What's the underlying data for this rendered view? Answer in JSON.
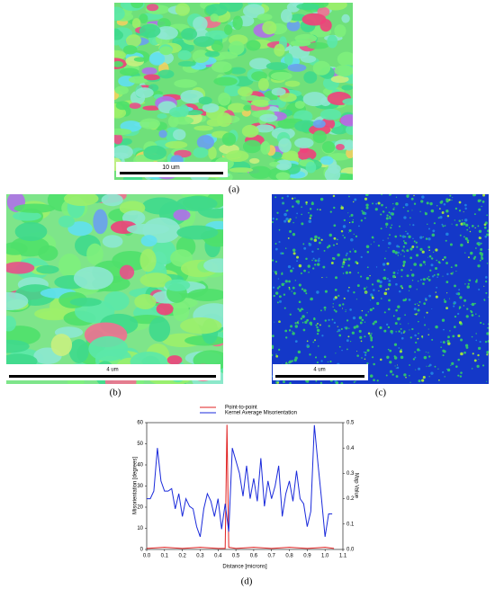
{
  "panels": [
    {
      "caption": "(a)",
      "scale_label": "10 um"
    },
    {
      "caption": "(b)",
      "scale_label": "4 um"
    },
    {
      "caption": "(c)",
      "scale_label": "4 um"
    }
  ],
  "chart_data": {
    "type": "line",
    "caption": "(d)",
    "xlabel": "Distance [microns]",
    "ylabel": "Misorientation [degrees]",
    "y2label": "Map Value",
    "xlim": [
      0,
      1.1
    ],
    "xticks": [
      {
        "value": 0,
        "label": "0.0"
      },
      0.1,
      0.2,
      0.3,
      0.4,
      0.5,
      0.6,
      0.7,
      0.8,
      0.9,
      {
        "value": 1,
        "label": "1.0"
      },
      1.1
    ],
    "ylim": [
      0,
      60
    ],
    "yticks": [
      0,
      10,
      20,
      30,
      40,
      50,
      60
    ],
    "y2lim": [
      0,
      0.5
    ],
    "y2ticks": [
      {
        "value": 0,
        "label": "0.0"
      },
      0.1,
      0.2,
      0.3,
      0.4,
      0.5
    ],
    "series": [
      {
        "name": "Point-to-point",
        "color": "#e02020",
        "x": [
          0,
          0.1,
          0.2,
          0.3,
          0.4,
          0.44,
          0.45,
          0.46,
          0.5,
          0.6,
          0.7,
          0.8,
          0.9,
          1.0,
          1.05
        ],
        "values": [
          0.5,
          1,
          0.5,
          1,
          0.5,
          0.5,
          59,
          1,
          0.5,
          1,
          0.5,
          1,
          0.5,
          1,
          0.5
        ]
      },
      {
        "name": "Kernel Average Misorientation",
        "color": "#1a2adb",
        "axis": "y2",
        "x": [
          0,
          0.02,
          0.04,
          0.06,
          0.08,
          0.1,
          0.12,
          0.14,
          0.16,
          0.18,
          0.2,
          0.22,
          0.24,
          0.26,
          0.28,
          0.3,
          0.32,
          0.34,
          0.36,
          0.38,
          0.4,
          0.42,
          0.44,
          0.46,
          0.48,
          0.5,
          0.52,
          0.54,
          0.56,
          0.58,
          0.6,
          0.62,
          0.64,
          0.66,
          0.68,
          0.7,
          0.72,
          0.74,
          0.76,
          0.78,
          0.8,
          0.82,
          0.84,
          0.86,
          0.88,
          0.9,
          0.92,
          0.94,
          0.96,
          0.98,
          1.0,
          1.02,
          1.04
        ],
        "values": [
          0.2,
          0.2,
          0.23,
          0.4,
          0.27,
          0.23,
          0.23,
          0.24,
          0.16,
          0.22,
          0.13,
          0.2,
          0.17,
          0.16,
          0.09,
          0.05,
          0.16,
          0.22,
          0.19,
          0.13,
          0.2,
          0.08,
          0.18,
          0.07,
          0.4,
          0.35,
          0.3,
          0.21,
          0.33,
          0.2,
          0.28,
          0.19,
          0.36,
          0.17,
          0.27,
          0.2,
          0.25,
          0.33,
          0.13,
          0.22,
          0.27,
          0.19,
          0.31,
          0.2,
          0.18,
          0.09,
          0.15,
          0.49,
          0.34,
          0.2,
          0.05,
          0.14,
          0.14
        ]
      }
    ]
  }
}
